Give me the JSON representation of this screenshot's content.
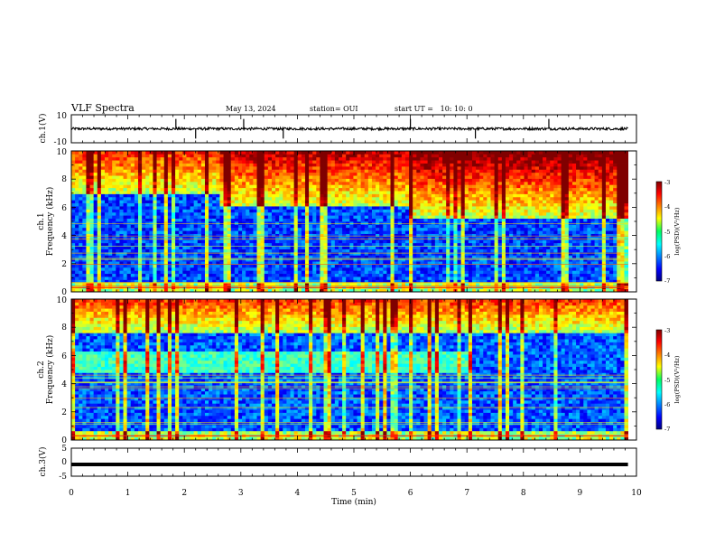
{
  "header": {
    "title": "VLF Spectra",
    "date": "May 13, 2024",
    "station": "station= OUI",
    "start": "start UT =   10: 10: 0"
  },
  "chart_data": [
    {
      "type": "line",
      "name": "ch1-waveform",
      "ylabel": "ch.1(V)",
      "ylim": [
        -10,
        10
      ],
      "yticklabels": [
        "10",
        "-10"
      ],
      "baseline": 0,
      "spike_times_min": [
        1.85,
        2.2,
        3.05,
        3.75,
        6.0,
        7.15,
        8.45
      ]
    },
    {
      "type": "heatmap",
      "name": "ch1-spectrogram",
      "ylabel_top": "ch.1",
      "ylabel": "Frequency (kHz)",
      "ylim": [
        0,
        10
      ],
      "yticklabels": [
        "0",
        "2",
        "4",
        "6",
        "8",
        "10"
      ],
      "xlim": [
        0,
        10
      ],
      "data_end_min": 9.85,
      "noise_floor_khz_by_segment": [
        {
          "t0": 0.0,
          "t1": 2.6,
          "khz": 7.0
        },
        {
          "t0": 2.6,
          "t1": 6.0,
          "khz": 6.0
        },
        {
          "t0": 6.0,
          "t1": 9.85,
          "khz": 5.2
        }
      ],
      "colorbar": {
        "label": "log(PSD)(V²/Hz)",
        "range": [
          -7,
          -3
        ],
        "ticklabels": [
          "-3",
          "-4",
          "-5",
          "-6",
          "-7"
        ]
      }
    },
    {
      "type": "heatmap",
      "name": "ch2-spectrogram",
      "ylabel_top": "ch.2",
      "ylabel": "Frequency (kHz)",
      "ylim": [
        0,
        10
      ],
      "yticklabels": [
        "0",
        "2",
        "4",
        "6",
        "8",
        "10"
      ],
      "xlim": [
        0,
        10
      ],
      "data_end_min": 9.85,
      "emission_band_khz": [
        4.8,
        6.2
      ],
      "emission_end_min": 7.1,
      "colorbar": {
        "label": "log(PSD)(V²/Hz)",
        "range": [
          -7,
          -3
        ],
        "ticklabels": [
          "-3",
          "-4",
          "-5",
          "-6",
          "-7"
        ]
      }
    },
    {
      "type": "line",
      "name": "ch3-waveform",
      "ylabel": "ch.3(V)",
      "ylim": [
        -5,
        5
      ],
      "yticklabels": [
        "5",
        "0",
        "-5"
      ],
      "level": -0.8
    }
  ],
  "xaxis": {
    "label": "Time (min)",
    "range": [
      0,
      10
    ],
    "ticklabels": [
      "0",
      "1",
      "2",
      "3",
      "4",
      "5",
      "6",
      "7",
      "8",
      "9",
      "10"
    ]
  }
}
